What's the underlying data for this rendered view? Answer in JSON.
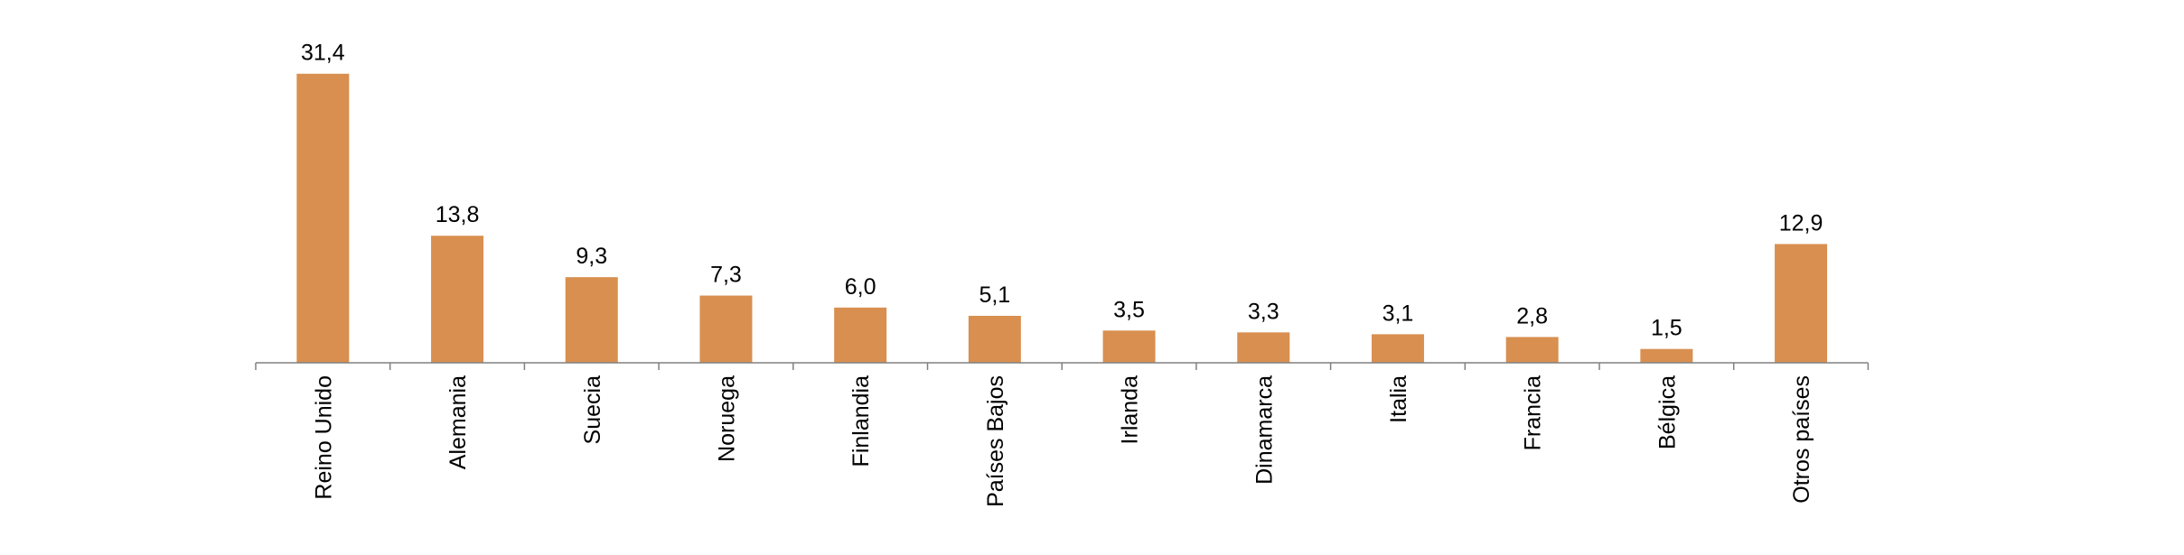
{
  "chart_data": {
    "type": "bar",
    "categories": [
      "Reino Unido",
      "Alemania",
      "Suecia",
      "Noruega",
      "Finlandia",
      "Países Bajos",
      "Irlanda",
      "Dinamarca",
      "Italia",
      "Francia",
      "Bélgica",
      "Otros países"
    ],
    "values": [
      31.4,
      13.8,
      9.3,
      7.3,
      6.0,
      5.1,
      3.5,
      3.3,
      3.1,
      2.8,
      1.5,
      12.9
    ],
    "value_labels": [
      "31,4",
      "13,8",
      "9,3",
      "7,3",
      "6,0",
      "5,1",
      "3,5",
      "3,3",
      "3,1",
      "2,8",
      "1,5",
      "12,9"
    ],
    "ylim": [
      0,
      35
    ],
    "grid": false,
    "bar_color": "#D88F4F",
    "axis_color": "#808080",
    "title": "",
    "xlabel": "",
    "ylabel": ""
  }
}
